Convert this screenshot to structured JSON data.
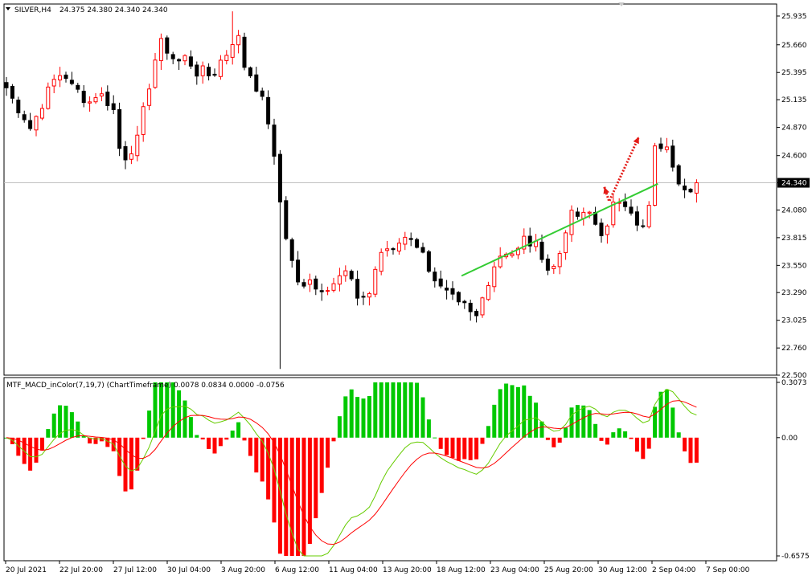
{
  "price_header": {
    "symbol": "SILVER,H4",
    "ohlc": "24.375 24.380 24.340 24.340"
  },
  "macd_header": {
    "title": "MTF_MACD_inColor(7,19,7) (ChartTimeframe) 0.0078 0.0834 0.0000 -0.0756"
  },
  "colors": {
    "background": "#ffffff",
    "bull_candle": "#ff0000",
    "bear_candle": "#000000",
    "hist_positive": "#00c800",
    "hist_negative": "#ff0000",
    "signal_line": "#ff0000",
    "macd_line": "#66cc00",
    "trendline": "#33cc33",
    "arrow": "#e41b17",
    "price_line": "#c0c0c0"
  },
  "chart_data": [
    {
      "type": "candlestick",
      "title": "SILVER,H4",
      "ylim": [
        22.5,
        26.05
      ],
      "y_ticks": [
        "25.935",
        "25.660",
        "25.395",
        "25.135",
        "24.870",
        "24.600",
        "24.340",
        "24.080",
        "23.815",
        "23.550",
        "23.290",
        "23.025",
        "22.760",
        "22.500"
      ],
      "current_price": "24.340",
      "x_tick_labels": [
        "20 Jul 2021",
        "22 Jul 20:00",
        "27 Jul 12:00",
        "30 Jul 04:00",
        "3 Aug 20:00",
        "6 Aug 12:00",
        "11 Aug 04:00",
        "13 Aug 20:00",
        "18 Aug 12:00",
        "23 Aug 04:00",
        "25 Aug 20:00",
        "30 Aug 12:00",
        "2 Sep 04:00",
        "7 Sep 00:00"
      ],
      "close_path": [
        25.25,
        25.1,
        25.0,
        24.85,
        25.05,
        25.2,
        25.35,
        25.4,
        25.25,
        25.2,
        25.1,
        25.2,
        25.15,
        25.05,
        24.55,
        24.65,
        24.75,
        25.15,
        25.5,
        25.7,
        25.55,
        25.5,
        25.55,
        25.4,
        25.4,
        25.35,
        25.5,
        25.6,
        25.8,
        25.45,
        25.35,
        25.15,
        24.9,
        24.3,
        23.85,
        23.5,
        23.3,
        23.4,
        23.35,
        23.3,
        23.45,
        23.55,
        23.4,
        23.15,
        23.25,
        23.55,
        23.75,
        23.65,
        23.8,
        23.85,
        23.75,
        23.6,
        23.45,
        23.3,
        23.25,
        23.15,
        23.15,
        23.0,
        23.25,
        23.5,
        23.65,
        23.7,
        23.65,
        23.8,
        23.75,
        23.7,
        23.5,
        23.55,
        23.9,
        24.05,
        24.0,
        24.05,
        23.9,
        23.85,
        24.15,
        24.2,
        24.1,
        23.85,
        23.95,
        24.7,
        24.7,
        24.55,
        24.35,
        24.3,
        24.34
      ],
      "annotations": {
        "trendline": {
          "from": {
            "bar": 76.5,
            "price": 23.45
          },
          "to": {
            "bar": 109.5,
            "price": 24.33
          }
        },
        "arrow": {
          "from": {
            "bar": 100.5,
            "price": 24.3
          },
          "to": {
            "bar": 106.3,
            "price": 24.78
          }
        }
      }
    },
    {
      "type": "bar+line",
      "title": "MTF_MACD_inColor(7,19,7) (ChartTimeframe) 0.0078 0.0834 0.0000 -0.0756",
      "ylim": [
        -0.6575,
        0.3073
      ],
      "y_ticks": [
        "0.3073",
        "0.00",
        "-0.6575"
      ],
      "series": [
        {
          "name": "",
          "role": "histogram",
          "values": []
        },
        {
          "name": "",
          "role": "macd",
          "values": []
        },
        {
          "name": "",
          "role": "signal",
          "values": []
        }
      ]
    }
  ]
}
